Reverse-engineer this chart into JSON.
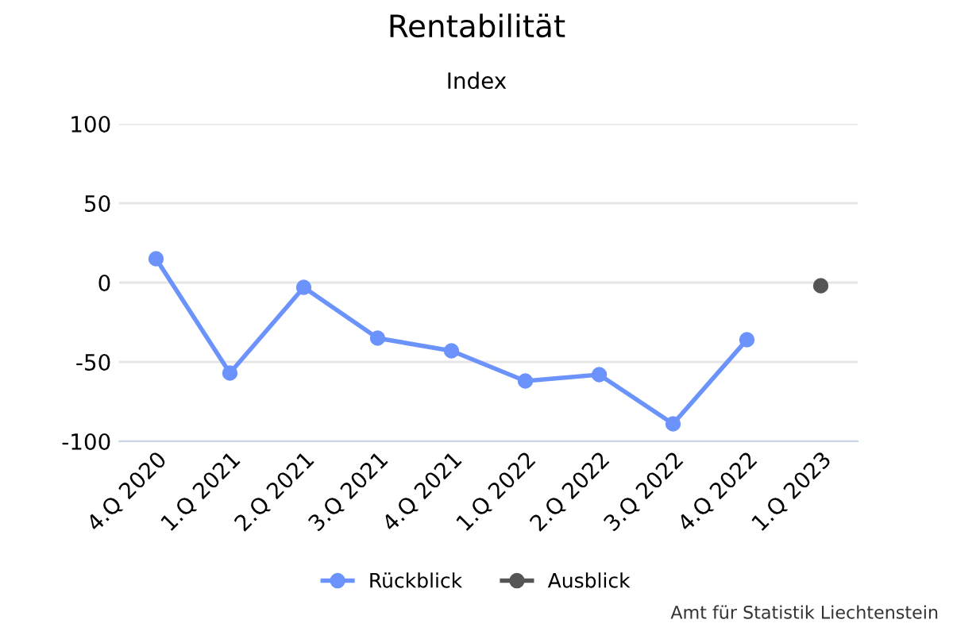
{
  "chart_data": {
    "type": "line",
    "title": "Rentabilität",
    "subtitle": "Index",
    "categories": [
      "4.Q 2020",
      "1.Q 2021",
      "2.Q 2021",
      "3.Q 2021",
      "4.Q 2021",
      "1.Q 2022",
      "2.Q 2022",
      "3.Q 2022",
      "4.Q 2022",
      "1.Q 2023"
    ],
    "series": [
      {
        "name": "Rückblick",
        "color": "#6b93fb",
        "values": [
          15,
          -57,
          -3,
          -35,
          -43,
          -62,
          -58,
          -89,
          -36,
          null
        ]
      },
      {
        "name": "Ausblick",
        "color": "#555555",
        "values": [
          null,
          null,
          null,
          null,
          null,
          null,
          null,
          null,
          null,
          -2
        ]
      }
    ],
    "ylim": [
      -100,
      100
    ],
    "yticks": [
      -100,
      -50,
      0,
      50,
      100
    ],
    "grid": "y",
    "legend": "bottom",
    "marker": "circle",
    "line_style": "solid",
    "annotations": [
      "Amt für Statistik Liechtenstein"
    ]
  }
}
